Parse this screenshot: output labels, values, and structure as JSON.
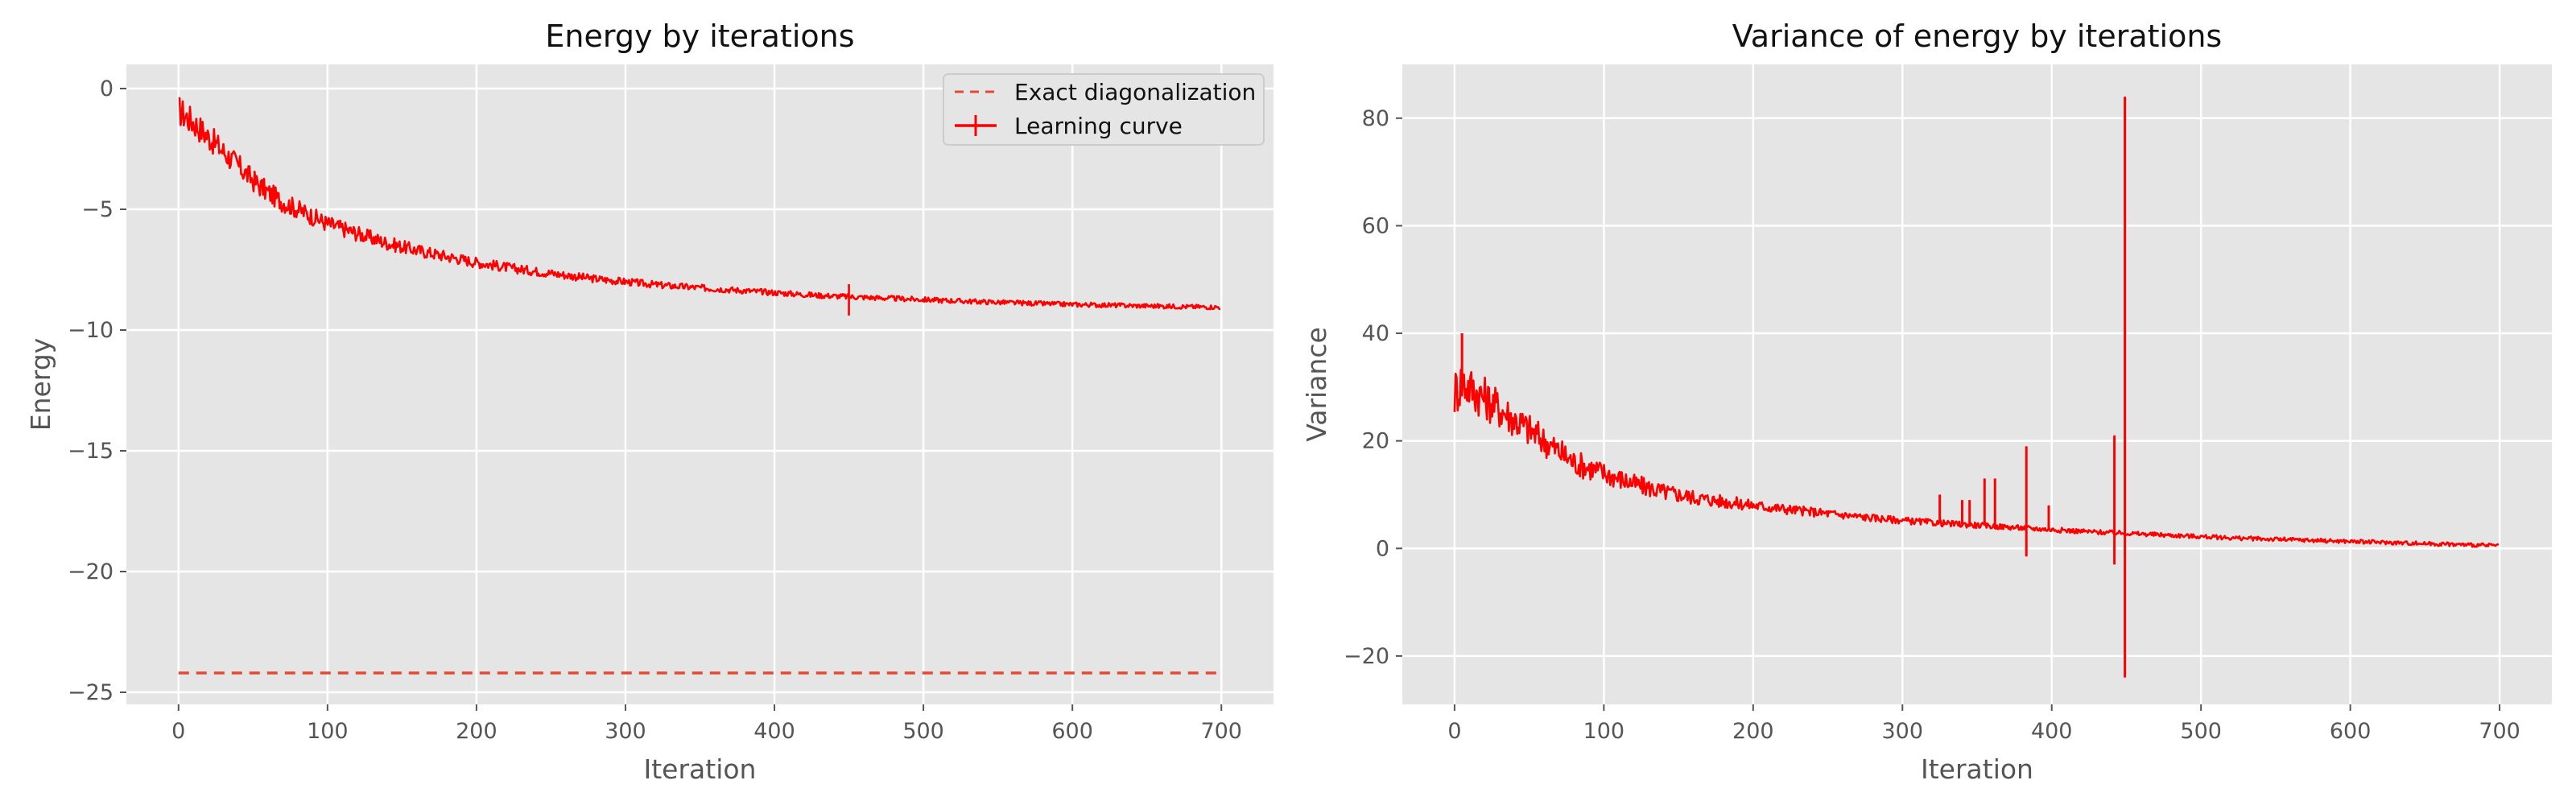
{
  "chart_data": [
    {
      "type": "line",
      "title": "Energy by iterations",
      "xlabel": "Iteration",
      "ylabel": "Energy",
      "xlim": [
        -35,
        735
      ],
      "ylim": [
        -25.5,
        1.0
      ],
      "xticks": [
        0,
        100,
        200,
        300,
        400,
        500,
        600,
        700
      ],
      "yticks": [
        0,
        -5,
        -10,
        -15,
        -20,
        -25
      ],
      "grid": true,
      "legend": "top-right",
      "series": [
        {
          "name": "Exact diagonalization",
          "style": "dashed",
          "color": "#E24A33",
          "x": [
            0,
            700
          ],
          "y": [
            -24.2,
            -24.2
          ]
        },
        {
          "name": "Learning curve",
          "style": "solid-errorbar",
          "color": "#FF0000",
          "x": [
            0,
            10,
            20,
            30,
            40,
            50,
            60,
            70,
            80,
            90,
            100,
            120,
            140,
            160,
            180,
            200,
            225,
            250,
            275,
            300,
            325,
            350,
            375,
            400,
            425,
            450,
            475,
            500,
            525,
            550,
            575,
            600,
            625,
            650,
            675,
            700
          ],
          "y": [
            -0.9,
            -1.4,
            -2.0,
            -2.6,
            -3.2,
            -3.8,
            -4.3,
            -4.7,
            -5.0,
            -5.3,
            -5.6,
            -6.0,
            -6.4,
            -6.7,
            -6.95,
            -7.2,
            -7.45,
            -7.65,
            -7.85,
            -8.0,
            -8.15,
            -8.25,
            -8.35,
            -8.45,
            -8.55,
            -8.62,
            -8.68,
            -8.74,
            -8.8,
            -8.85,
            -8.9,
            -8.94,
            -8.97,
            -9.0,
            -9.03,
            -9.05
          ]
        }
      ]
    },
    {
      "type": "line",
      "title": "Variance of energy by iterations",
      "xlabel": "Iteration",
      "ylabel": "Variance",
      "xlim": [
        -35,
        735
      ],
      "ylim": [
        -29,
        90
      ],
      "xticks": [
        0,
        100,
        200,
        300,
        400,
        500,
        600,
        700
      ],
      "yticks": [
        -20,
        0,
        20,
        40,
        60,
        80
      ],
      "grid": true,
      "series": [
        {
          "color": "#FF0000",
          "x": [
            0,
            5,
            10,
            20,
            30,
            40,
            50,
            60,
            70,
            80,
            90,
            100,
            120,
            140,
            160,
            180,
            200,
            225,
            250,
            275,
            300,
            325,
            350,
            375,
            400,
            425,
            450,
            475,
            500,
            525,
            550,
            575,
            600,
            625,
            650,
            675,
            700
          ],
          "y": [
            29,
            31,
            30,
            28,
            26,
            24,
            22,
            20,
            18,
            16,
            15,
            14,
            12,
            10.5,
            9.5,
            8.7,
            8,
            7.2,
            6.5,
            5.8,
            5.2,
            4.7,
            4.3,
            3.9,
            3.5,
            3.1,
            2.8,
            2.5,
            2.2,
            1.9,
            1.7,
            1.5,
            1.3,
            1.1,
            0.9,
            0.7,
            0.5
          ],
          "spikes": [
            {
              "x": 5,
              "y": 40
            },
            {
              "x": 325,
              "y": 10
            },
            {
              "x": 340,
              "y": 9
            },
            {
              "x": 345,
              "y": 9
            },
            {
              "x": 355,
              "y": 13
            },
            {
              "x": 362,
              "y": 13
            },
            {
              "x": 383,
              "y": 19
            },
            {
              "x": 383,
              "y": -1.5
            },
            {
              "x": 398,
              "y": 8
            },
            {
              "x": 442,
              "y": 21
            },
            {
              "x": 442,
              "y": -3
            },
            {
              "x": 449,
              "y": 84
            },
            {
              "x": 449,
              "y": -24
            }
          ]
        }
      ]
    }
  ]
}
